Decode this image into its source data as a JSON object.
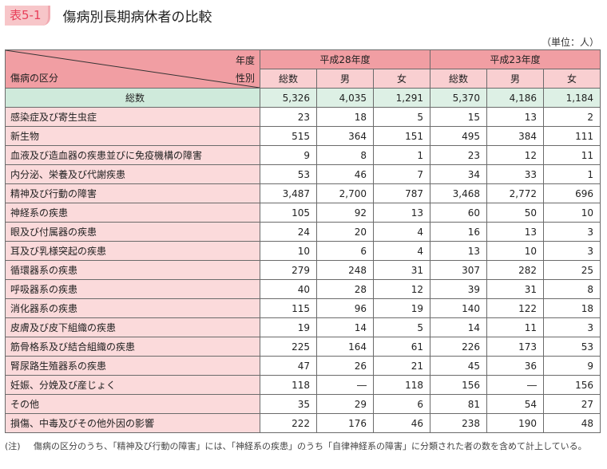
{
  "header": {
    "badge": "表5-1",
    "title": "傷病別長期病休者の比較",
    "unit": "（単位：人）"
  },
  "table": {
    "corner": {
      "year_label": "年度",
      "sex_label": "性別",
      "category_label": "傷病の区分"
    },
    "years": [
      "平成28年度",
      "平成23年度"
    ],
    "sub_headers": [
      "総数",
      "男",
      "女",
      "総数",
      "男",
      "女"
    ],
    "total": {
      "label": "総数",
      "values": [
        "5,326",
        "4,035",
        "1,291",
        "5,370",
        "4,186",
        "1,184"
      ]
    },
    "rows": [
      {
        "label": "感染症及び寄生虫症",
        "values": [
          "23",
          "18",
          "5",
          "15",
          "13",
          "2"
        ]
      },
      {
        "label": "新生物",
        "values": [
          "515",
          "364",
          "151",
          "495",
          "384",
          "111"
        ]
      },
      {
        "label": "血液及び造血器の疾患並びに免疫機構の障害",
        "values": [
          "9",
          "8",
          "1",
          "23",
          "12",
          "11"
        ]
      },
      {
        "label": "内分泌、栄養及び代謝疾患",
        "values": [
          "53",
          "46",
          "7",
          "34",
          "33",
          "1"
        ]
      },
      {
        "label": "精神及び行動の障害",
        "values": [
          "3,487",
          "2,700",
          "787",
          "3,468",
          "2,772",
          "696"
        ]
      },
      {
        "label": "神経系の疾患",
        "values": [
          "105",
          "92",
          "13",
          "60",
          "50",
          "10"
        ]
      },
      {
        "label": "眼及び付属器の疾患",
        "values": [
          "24",
          "20",
          "4",
          "16",
          "13",
          "3"
        ]
      },
      {
        "label": "耳及び乳様突起の疾患",
        "values": [
          "10",
          "6",
          "4",
          "13",
          "10",
          "3"
        ]
      },
      {
        "label": "循環器系の疾患",
        "values": [
          "279",
          "248",
          "31",
          "307",
          "282",
          "25"
        ]
      },
      {
        "label": "呼吸器系の疾患",
        "values": [
          "40",
          "28",
          "12",
          "39",
          "31",
          "8"
        ]
      },
      {
        "label": "消化器系の疾患",
        "values": [
          "115",
          "96",
          "19",
          "140",
          "122",
          "18"
        ]
      },
      {
        "label": "皮膚及び皮下組織の疾患",
        "values": [
          "19",
          "14",
          "5",
          "14",
          "11",
          "3"
        ]
      },
      {
        "label": "筋骨格系及び結合組織の疾患",
        "values": [
          "225",
          "164",
          "61",
          "226",
          "173",
          "53"
        ]
      },
      {
        "label": "腎尿路生殖器系の疾患",
        "values": [
          "47",
          "26",
          "21",
          "45",
          "36",
          "9"
        ]
      },
      {
        "label": "妊娠、分娩及び産じょく",
        "values": [
          "118",
          "―",
          "118",
          "156",
          "―",
          "156"
        ]
      },
      {
        "label": "その他",
        "values": [
          "35",
          "29",
          "6",
          "81",
          "54",
          "27"
        ]
      },
      {
        "label": "損傷、中毒及びその他外因の影響",
        "values": [
          "222",
          "176",
          "46",
          "238",
          "190",
          "48"
        ]
      }
    ]
  },
  "note": {
    "mark": "(注)",
    "text": "傷病の区分のうち、「精神及び行動の障害」には、「神経系の疾患」のうち「自律神経系の障害」に分類された者の数を含めて計上している。"
  }
}
